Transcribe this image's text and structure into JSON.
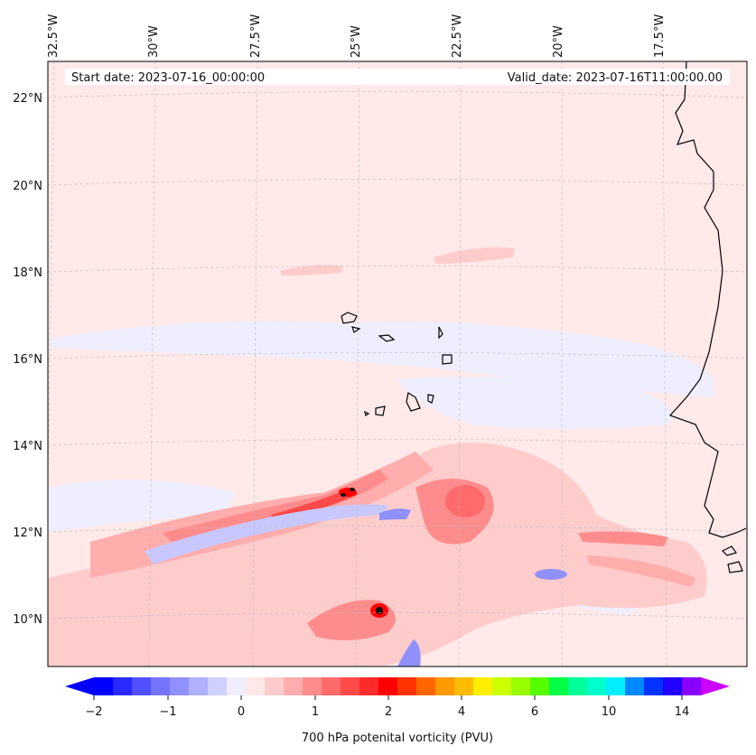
{
  "header": {
    "start_date": "Start date: 2023-07-16_00:00:00",
    "valid_date": "Valid_date: 2023-07-16T11:00:00.00"
  },
  "map": {
    "top_labels": [
      "32.5°W",
      "30°W",
      "27.5°W",
      "25°W",
      "22.5°W",
      "20°W",
      "17.5°W"
    ],
    "left_labels": [
      "22°N",
      "20°N",
      "18°N",
      "16°N",
      "14°N",
      "12°N",
      "10°N"
    ]
  },
  "colorbar": {
    "title": "700 hPa potenital vorticity (PVU)",
    "tick_labels": [
      "−2",
      "−1",
      "0",
      "1",
      "2",
      "4",
      "6",
      "10",
      "14"
    ],
    "colors": [
      "#0000ff",
      "#2a2aff",
      "#5050ff",
      "#7474ff",
      "#9090ff",
      "#b0b0ff",
      "#d0d0ff",
      "#eeeeff",
      "#ffe8e8",
      "#ffcccc",
      "#ffadad",
      "#ff8c8c",
      "#ff6b6b",
      "#ff4a4a",
      "#ff2a2a",
      "#ff0000",
      "#ff3300",
      "#ff6600",
      "#ff9900",
      "#ffbb00",
      "#ffee00",
      "#ccff00",
      "#99ff00",
      "#55ff00",
      "#00ff44",
      "#00ff99",
      "#00ffcc",
      "#00eeff",
      "#0088ff",
      "#0033ff",
      "#2200ff",
      "#8800ff"
    ],
    "over_color": "#cc00ff",
    "under_color": "#0000ff"
  }
}
